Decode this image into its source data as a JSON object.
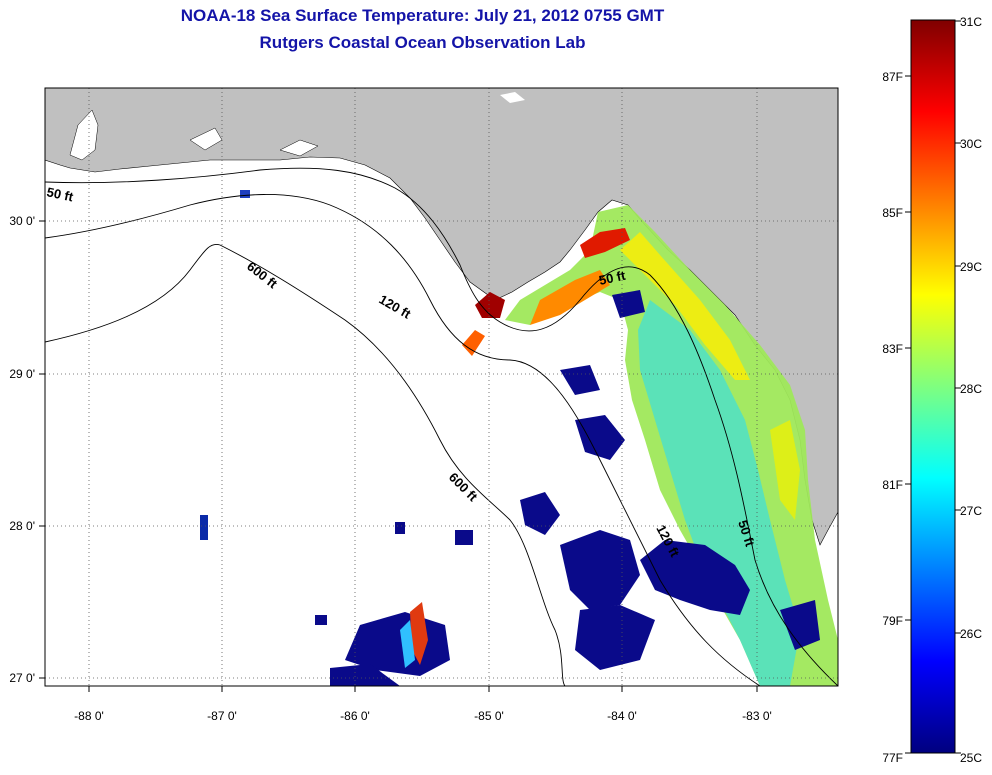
{
  "title": {
    "line1": "NOAA-18 Sea Surface Temperature:  July 21, 2012 0755 GMT",
    "line2": "Rutgers Coastal Ocean Observation Lab"
  },
  "map": {
    "lon_range": [
      -88.33,
      -82.42
    ],
    "lat_range": [
      26.95,
      30.85
    ],
    "lon_ticks": [
      -88,
      -87,
      -86,
      -85,
      -84,
      -83
    ],
    "lon_labels": [
      "-88 0'",
      "-87 0'",
      "-86 0'",
      "-85 0'",
      "-84 0'",
      "-83 0'"
    ],
    "lat_ticks": [
      30,
      29,
      28,
      27
    ],
    "lat_labels": [
      "30 0'",
      "29 0'",
      "28 0'",
      "27 0'"
    ],
    "grid": "dotted",
    "land_color": "#c0c0c0",
    "contour_labels": [
      "50 ft",
      "600 ft",
      "120 ft",
      "50 ft",
      "600 ft",
      "120 ft",
      "50 ft"
    ]
  },
  "colorbar": {
    "colors": [
      "#00007f",
      "#0000ff",
      "#007fff",
      "#00ffff",
      "#7fff7f",
      "#ffff00",
      "#ff7f00",
      "#ff0000",
      "#7f0000"
    ],
    "celsius_labels": [
      "31C",
      "30C",
      "29C",
      "28C",
      "27C",
      "26C",
      "25C"
    ],
    "fahrenheit_labels": [
      "87F",
      "85F",
      "83F",
      "81F",
      "79F",
      "77F"
    ]
  }
}
